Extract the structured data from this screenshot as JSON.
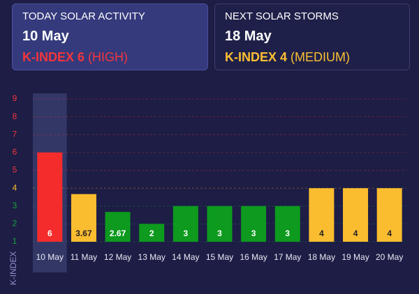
{
  "cards": [
    {
      "title": "TODAY SOLAR ACTIVITY",
      "date": "10 May",
      "index": "K-INDEX 6",
      "level": "(HIGH)",
      "color": "#f3353c"
    },
    {
      "title": "NEXT SOLAR STORMS",
      "date": "18 May",
      "index": "K-INDEX 4",
      "level": "(MEDIUM)",
      "color": "#fcbf32"
    }
  ],
  "chart_data": {
    "type": "bar",
    "y_label": "K-INDEX",
    "categories": [
      "10 May",
      "11 May",
      "12 May",
      "13 May",
      "14 May",
      "15 May",
      "16 May",
      "17 May",
      "18 May",
      "19 May",
      "20 May"
    ],
    "values": [
      6,
      3.67,
      2.67,
      2,
      3,
      3,
      3,
      3,
      4,
      4,
      4
    ],
    "colors": [
      "#f52c2c",
      "#fbbd30",
      "#0d9a1e",
      "#0d9a1e",
      "#0d9a1e",
      "#0d9a1e",
      "#0d9a1e",
      "#0d9a1e",
      "#fbbd30",
      "#fbbd30",
      "#fbbd30"
    ],
    "ylim": [
      1,
      9
    ],
    "yticks": [
      1,
      2,
      3,
      4,
      5,
      6,
      7,
      8,
      9
    ],
    "ytick_colors": [
      "#17a63a",
      "#17a63a",
      "#17a63a",
      "#fbbd30",
      "#f3353c",
      "#f3353c",
      "#f3353c",
      "#f3353c",
      "#f3353c"
    ],
    "grid": true,
    "highlight": 0
  }
}
